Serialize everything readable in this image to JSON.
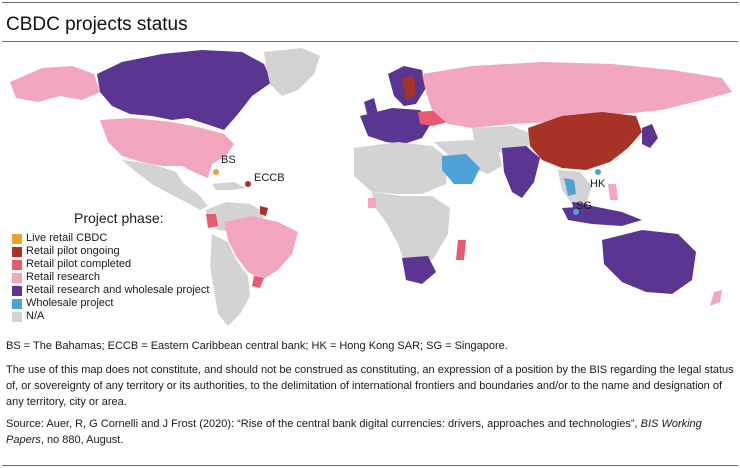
{
  "title": "CBDC projects status",
  "legend": {
    "title": "Project phase:",
    "items": [
      {
        "label": "Live retail CBDC",
        "color": "#e8a42b"
      },
      {
        "label": "Retail pilot ongoing",
        "color": "#a93226"
      },
      {
        "label": "Retail pilot completed",
        "color": "#e85a72"
      },
      {
        "label": "Retail research",
        "color": "#f2a7bf"
      },
      {
        "label": "Retail research and wholesale project",
        "color": "#5b3592"
      },
      {
        "label": "Wholesale project",
        "color": "#4da3d8"
      },
      {
        "label": "N/A",
        "color": "#d3d3d3"
      }
    ]
  },
  "map_labels": {
    "bs": "BS",
    "eccb": "ECCB",
    "hk": "HK",
    "sg": "SG"
  },
  "notes": {
    "abbreviations": "BS = The Bahamas; ECCB = Eastern Caribbean central bank; HK = Hong Kong SAR; SG = Singapore.",
    "disclaimer": "The use of this map does not constitute, and should not be construed as constituting, an expression of a position by the BIS regarding the legal status of, or sovereignty of any territory or its authorities, to the delimitation of international frontiers and boundaries and/or to the name and designation of any territory, city or area.",
    "source_prefix": "Source: Auer, R, G Cornelli and J Frost (2020): “Rise of the central bank digital currencies: drivers, approaches and technologies”, ",
    "source_journal": "BIS Working Papers",
    "source_suffix": ", no 880, August."
  },
  "colors": {
    "live_retail": "#e8a42b",
    "retail_pilot_ongoing": "#a93226",
    "retail_pilot_completed": "#e85a72",
    "retail_research": "#f2a7bf",
    "retail_research_wholesale": "#5b3592",
    "wholesale": "#4da3d8",
    "na": "#d3d3d3"
  }
}
